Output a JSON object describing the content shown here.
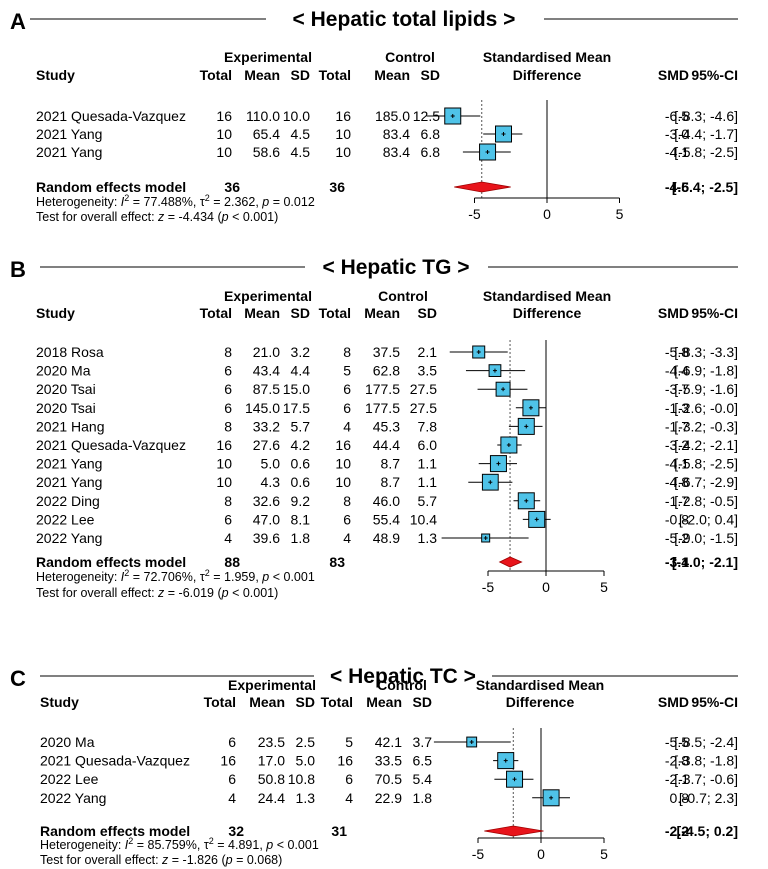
{
  "colors": {
    "box": "#4fc3e8",
    "diamond": "#e8141b",
    "line": "#000000",
    "dotted": "#555555"
  },
  "headers": {
    "study": "Study",
    "experimental": "Experimental",
    "control": "Control",
    "total": "Total",
    "mean": "Mean",
    "sd": "SD",
    "smd_title_1": "Standardised Mean",
    "smd_title_2": "Difference",
    "smd": "SMD",
    "ci": "95%-CI"
  },
  "chart_data": [
    {
      "type": "forest",
      "panel_label": "A",
      "title": "< Hepatic total lipids >",
      "xlim": [
        -10,
        5
      ],
      "ticks": [
        "-5",
        "0",
        "5"
      ],
      "tick_values": [
        -5,
        0,
        5
      ],
      "studies": [
        {
          "study": "2021 Quesada-Vazquez",
          "e_total": "16",
          "e_mean": "110.0",
          "e_sd": "10.0",
          "c_total": "16",
          "c_mean": "185.0",
          "c_sd": "12.5",
          "smd": -6.5,
          "lo": -8.3,
          "hi": -4.6,
          "smd_text": "-6.5",
          "ci_text": "[-8.3; -4.6]"
        },
        {
          "study": "2021 Yang",
          "e_total": "10",
          "e_mean": "65.4",
          "e_sd": "4.5",
          "c_total": "10",
          "c_mean": "83.4",
          "c_sd": "6.8",
          "smd": -3.0,
          "lo": -4.4,
          "hi": -1.7,
          "smd_text": "-3.0",
          "ci_text": "[-4.4; -1.7]"
        },
        {
          "study": "2021 Yang",
          "e_total": "10",
          "e_mean": "58.6",
          "e_sd": "4.5",
          "c_total": "10",
          "c_mean": "83.4",
          "c_sd": "6.8",
          "smd": -4.1,
          "lo": -5.8,
          "hi": -2.5,
          "smd_text": "-4.1",
          "ci_text": "[-5.8; -2.5]"
        }
      ],
      "model": {
        "label": "Random effects model",
        "e_total": "36",
        "c_total": "36",
        "smd": -4.5,
        "lo": -6.4,
        "hi": -2.5,
        "smd_text": "-4.5",
        "ci_text": "[-6.4; -2.5]"
      },
      "heterogeneity": {
        "prefix": "Heterogeneity: ",
        "i2": "77.488%",
        "tau2": "2.362",
        "p": "0.012"
      },
      "overall": {
        "prefix": "Test for overall effect: ",
        "z": "-4.434",
        "p": "< 0.001"
      }
    },
    {
      "type": "forest",
      "panel_label": "B",
      "title": "< Hepatic TG >",
      "xlim": [
        -8,
        6
      ],
      "ticks": [
        "-5",
        "0",
        "5"
      ],
      "tick_values": [
        -5,
        0,
        5
      ],
      "studies": [
        {
          "study": "2018 Rosa",
          "e_total": "8",
          "e_mean": "21.0",
          "e_sd": "3.2",
          "c_total": "8",
          "c_mean": "37.5",
          "c_sd": "2.1",
          "smd": -5.8,
          "lo": -8.3,
          "hi": -3.3,
          "smd_text": "-5.8",
          "ci_text": "[-8.3; -3.3]"
        },
        {
          "study": "2020 Ma",
          "e_total": "6",
          "e_mean": "43.4",
          "e_sd": "4.4",
          "c_total": "5",
          "c_mean": "62.8",
          "c_sd": "3.5",
          "smd": -4.4,
          "lo": -6.9,
          "hi": -1.8,
          "smd_text": "-4.4",
          "ci_text": "[-6.9; -1.8]"
        },
        {
          "study": "2020 Tsai",
          "e_total": "6",
          "e_mean": "87.5",
          "e_sd": "15.0",
          "c_total": "6",
          "c_mean": "177.5",
          "c_sd": "27.5",
          "smd": -3.7,
          "lo": -5.9,
          "hi": -1.6,
          "smd_text": "-3.7",
          "ci_text": "[-5.9; -1.6]"
        },
        {
          "study": "2020 Tsai",
          "e_total": "6",
          "e_mean": "145.0",
          "e_sd": "17.5",
          "c_total": "6",
          "c_mean": "177.5",
          "c_sd": "27.5",
          "smd": -1.3,
          "lo": -2.6,
          "hi": -0.0,
          "smd_text": "-1.3",
          "ci_text": "[-2.6; -0.0]"
        },
        {
          "study": "2021 Hang",
          "e_total": "8",
          "e_mean": "33.2",
          "e_sd": "5.7",
          "c_total": "4",
          "c_mean": "45.3",
          "c_sd": "7.8",
          "smd": -1.7,
          "lo": -3.2,
          "hi": -0.3,
          "smd_text": "-1.7",
          "ci_text": "[-3.2; -0.3]"
        },
        {
          "study": "2021 Quesada-Vazquez",
          "e_total": "16",
          "e_mean": "27.6",
          "e_sd": "4.2",
          "c_total": "16",
          "c_mean": "44.4",
          "c_sd": "6.0",
          "smd": -3.2,
          "lo": -4.2,
          "hi": -2.1,
          "smd_text": "-3.2",
          "ci_text": "[-4.2; -2.1]"
        },
        {
          "study": "2021 Yang",
          "e_total": "10",
          "e_mean": "5.0",
          "e_sd": "0.6",
          "c_total": "10",
          "c_mean": "8.7",
          "c_sd": "1.1",
          "smd": -4.1,
          "lo": -5.8,
          "hi": -2.5,
          "smd_text": "-4.1",
          "ci_text": "[-5.8; -2.5]"
        },
        {
          "study": "2021 Yang",
          "e_total": "10",
          "e_mean": "4.3",
          "e_sd": "0.6",
          "c_total": "10",
          "c_mean": "8.7",
          "c_sd": "1.1",
          "smd": -4.8,
          "lo": -6.7,
          "hi": -2.9,
          "smd_text": "-4.8",
          "ci_text": "[-6.7; -2.9]"
        },
        {
          "study": "2022 Ding",
          "e_total": "8",
          "e_mean": "32.6",
          "e_sd": "9.2",
          "c_total": "8",
          "c_mean": "46.0",
          "c_sd": "5.7",
          "smd": -1.7,
          "lo": -2.8,
          "hi": -0.5,
          "smd_text": "-1.7",
          "ci_text": "[-2.8; -0.5]"
        },
        {
          "study": "2022 Lee",
          "e_total": "6",
          "e_mean": "47.0",
          "e_sd": "8.1",
          "c_total": "6",
          "c_mean": "55.4",
          "c_sd": "10.4",
          "smd": -0.8,
          "lo": -2.0,
          "hi": 0.4,
          "smd_text": "-0.8",
          "ci_text": "[-2.0; 0.4]"
        },
        {
          "study": "2022 Yang",
          "e_total": "4",
          "e_mean": "39.6",
          "e_sd": "1.8",
          "c_total": "4",
          "c_mean": "48.9",
          "c_sd": "1.3",
          "smd": -5.2,
          "lo": -9.0,
          "hi": -1.5,
          "smd_text": "-5.2",
          "ci_text": "[-9.0; -1.5]"
        }
      ],
      "model": {
        "label": "Random effects model",
        "e_total": "88",
        "c_total": "83",
        "smd": -3.1,
        "lo": -4.0,
        "hi": -2.1,
        "smd_text": "-3.1",
        "ci_text": "[-4.0; -2.1]"
      },
      "heterogeneity": {
        "prefix": "Heterogeneity: ",
        "i2": "72.706%",
        "tau2": "1.959",
        "p": "< 0.001"
      },
      "overall": {
        "prefix": "Test for overall effect: ",
        "z": "-6.019",
        "p": "< 0.001"
      }
    },
    {
      "type": "forest",
      "panel_label": "C",
      "title": "< Hepatic TC >",
      "xlim": [
        -9,
        5
      ],
      "ticks": [
        "-5",
        "0",
        "5"
      ],
      "tick_values": [
        -5,
        0,
        5
      ],
      "studies": [
        {
          "study": "2020 Ma",
          "e_total": "6",
          "e_mean": "23.5",
          "e_sd": "2.5",
          "c_total": "5",
          "c_mean": "42.1",
          "c_sd": "3.7",
          "smd": -5.5,
          "lo": -8.5,
          "hi": -2.4,
          "smd_text": "-5.5",
          "ci_text": "[-8.5; -2.4]"
        },
        {
          "study": "2021 Quesada-Vazquez",
          "e_total": "16",
          "e_mean": "17.0",
          "e_sd": "5.0",
          "c_total": "16",
          "c_mean": "33.5",
          "c_sd": "6.5",
          "smd": -2.8,
          "lo": -3.8,
          "hi": -1.8,
          "smd_text": "-2.8",
          "ci_text": "[-3.8; -1.8]"
        },
        {
          "study": "2022 Lee",
          "e_total": "6",
          "e_mean": "50.8",
          "e_sd": "10.8",
          "c_total": "6",
          "c_mean": "70.5",
          "c_sd": "5.4",
          "smd": -2.1,
          "lo": -3.7,
          "hi": -0.6,
          "smd_text": "-2.1",
          "ci_text": "[-3.7; -0.6]"
        },
        {
          "study": "2022 Yang",
          "e_total": "4",
          "e_mean": "24.4",
          "e_sd": "1.3",
          "c_total": "4",
          "c_mean": "22.9",
          "c_sd": "1.8",
          "smd": 0.8,
          "lo": -0.7,
          "hi": 2.3,
          "smd_text": "0.8",
          "ci_text": "[-0.7; 2.3]"
        }
      ],
      "model": {
        "label": "Random effects model",
        "e_total": "32",
        "c_total": "31",
        "smd": -2.2,
        "lo": -4.5,
        "hi": 0.2,
        "smd_text": "-2.2",
        "ci_text": "[-4.5; 0.2]"
      },
      "heterogeneity": {
        "prefix": "Heterogeneity: ",
        "i2": "85.759%",
        "tau2": "4.891",
        "p": "< 0.001"
      },
      "overall": {
        "prefix": "Test for overall effect: ",
        "z": "-1.826",
        "p": "0.068"
      }
    }
  ]
}
